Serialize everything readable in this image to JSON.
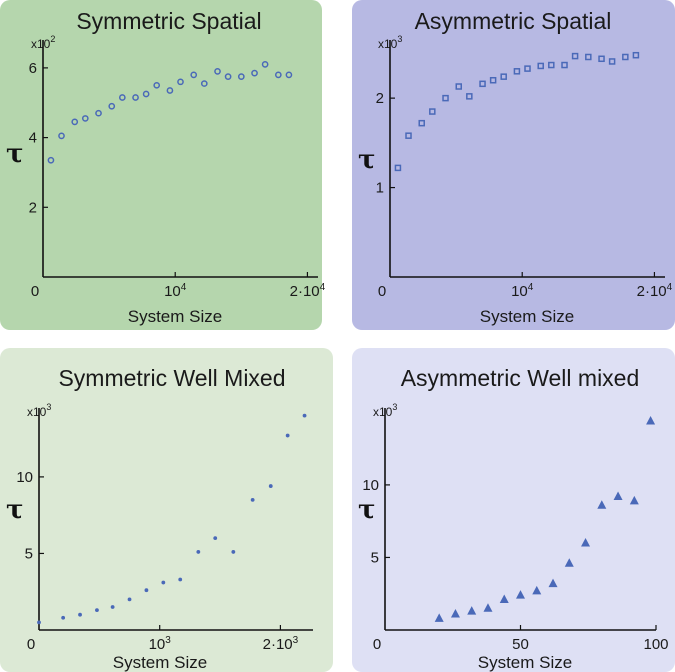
{
  "chart_data": [
    {
      "id": "p1",
      "type": "scatter",
      "title": "Symmetric Spatial",
      "xlabel": "System Size",
      "ylabel": "τ",
      "panel_color": "#b5d6ad",
      "marker": "circle",
      "marker_color": "#4a69b8",
      "y_multiplier": {
        "base": "x10",
        "exp": "2"
      },
      "xlim": [
        0,
        20800
      ],
      "ylim": [
        0,
        6.8
      ],
      "xticks": [
        {
          "value": 0,
          "label": "0",
          "sup": ""
        },
        {
          "value": 10000,
          "label": "10",
          "sup": "4"
        },
        {
          "value": 20000,
          "label": "2·10",
          "sup": "4"
        }
      ],
      "yticks": [
        {
          "value": 2,
          "label": "2"
        },
        {
          "value": 4,
          "label": "4"
        },
        {
          "value": 6,
          "label": "6"
        }
      ],
      "points": {
        "x": [
          600,
          1400,
          2400,
          3200,
          4200,
          5200,
          6000,
          7000,
          7800,
          8600,
          9600,
          10400,
          11400,
          12200,
          13200,
          14000,
          15000,
          16000,
          16800,
          17800,
          18600
        ],
        "y": [
          3.35,
          4.05,
          4.45,
          4.55,
          4.7,
          4.9,
          5.15,
          5.15,
          5.25,
          5.5,
          5.35,
          5.6,
          5.8,
          5.55,
          5.9,
          5.75,
          5.75,
          5.85,
          6.1,
          5.8,
          5.8
        ]
      }
    },
    {
      "id": "p2",
      "type": "scatter",
      "title": "Asymmetric Spatial",
      "xlabel": "System Size",
      "ylabel": "τ",
      "panel_color": "#b7b9e3",
      "marker": "square",
      "marker_color": "#4a69b8",
      "y_multiplier": {
        "base": "x10",
        "exp": "3"
      },
      "xlim": [
        0,
        20800
      ],
      "ylim": [
        0,
        2.65
      ],
      "xticks": [
        {
          "value": 0,
          "label": "0",
          "sup": ""
        },
        {
          "value": 10000,
          "label": "10",
          "sup": "4"
        },
        {
          "value": 20000,
          "label": "2·10",
          "sup": "4"
        }
      ],
      "yticks": [
        {
          "value": 1,
          "label": "1"
        },
        {
          "value": 2,
          "label": "2"
        }
      ],
      "points": {
        "x": [
          600,
          1400,
          2400,
          3200,
          4200,
          5200,
          6000,
          7000,
          7800,
          8600,
          9600,
          10400,
          11400,
          12200,
          13200,
          14000,
          15000,
          16000,
          16800,
          17800,
          18600
        ],
        "y": [
          1.22,
          1.58,
          1.72,
          1.85,
          2.0,
          2.13,
          2.02,
          2.16,
          2.2,
          2.24,
          2.3,
          2.33,
          2.36,
          2.37,
          2.37,
          2.47,
          2.46,
          2.44,
          2.41,
          2.46,
          2.48
        ]
      }
    },
    {
      "id": "p3",
      "type": "scatter",
      "title": "Symmetric Well Mixed",
      "xlabel": "System Size",
      "ylabel": "τ",
      "panel_color": "#dce9d5",
      "marker": "dot",
      "marker_color": "#4a69b8",
      "y_multiplier": {
        "base": "x10",
        "exp": "3"
      },
      "xlim": [
        0,
        2270
      ],
      "ylim": [
        0,
        14.5
      ],
      "xticks": [
        {
          "value": 0,
          "label": "0",
          "sup": ""
        },
        {
          "value": 1000,
          "label": "10",
          "sup": "3"
        },
        {
          "value": 2000,
          "label": "2·10",
          "sup": "3"
        }
      ],
      "yticks": [
        {
          "value": 5,
          "label": "5"
        },
        {
          "value": 10,
          "label": "10"
        }
      ],
      "points": {
        "x": [
          0,
          200,
          340,
          480,
          610,
          750,
          890,
          1030,
          1170,
          1320,
          1460,
          1610,
          1770,
          1920,
          2060,
          2200
        ],
        "y": [
          0.5,
          0.8,
          1.0,
          1.3,
          1.5,
          2.0,
          2.6,
          3.1,
          3.3,
          5.1,
          6.0,
          5.1,
          8.5,
          9.4,
          12.7,
          14.0
        ]
      }
    },
    {
      "id": "p4",
      "type": "scatter",
      "title": "Asymmetric Well mixed",
      "xlabel": "System Size",
      "ylabel": "τ",
      "panel_color": "#dee0f4",
      "marker": "triangle",
      "marker_color": "#4a69b8",
      "y_multiplier": {
        "base": "x10",
        "exp": "3"
      },
      "xlim": [
        0,
        100
      ],
      "ylim": [
        0,
        15.3
      ],
      "xticks": [
        {
          "value": 0,
          "label": "0",
          "sup": ""
        },
        {
          "value": 50,
          "label": "50",
          "sup": ""
        },
        {
          "value": 100,
          "label": "100",
          "sup": ""
        }
      ],
      "yticks": [
        {
          "value": 5,
          "label": "5"
        },
        {
          "value": 10,
          "label": "10"
        }
      ],
      "points": {
        "x": [
          20,
          26,
          32,
          38,
          44,
          50,
          56,
          62,
          68,
          74,
          80,
          86,
          92,
          98
        ],
        "y": [
          0.8,
          1.1,
          1.3,
          1.5,
          2.1,
          2.4,
          2.7,
          3.2,
          4.6,
          6.0,
          8.6,
          9.2,
          8.9,
          14.4
        ]
      }
    }
  ]
}
